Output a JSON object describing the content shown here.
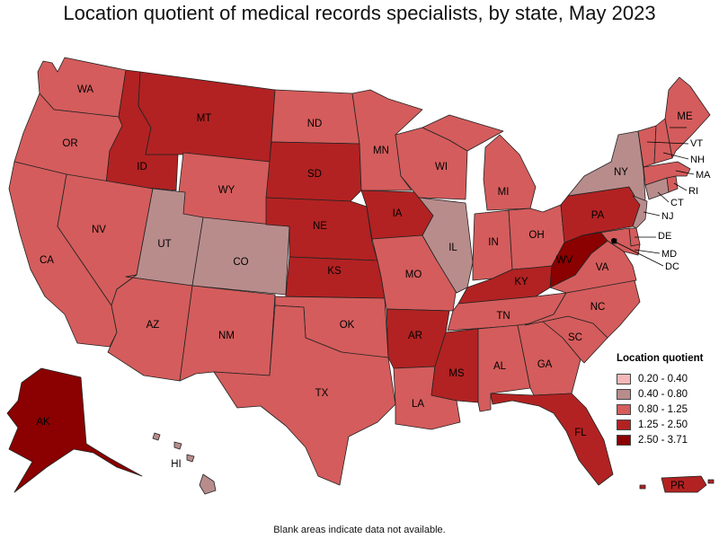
{
  "title": "Location quotient of medical records specialists, by state, May 2023",
  "footnote": "Blank areas indicate data not available.",
  "legend": {
    "title": "Location quotient",
    "bins": [
      {
        "label": "0.20 - 0.40",
        "color": "#f4b8b8"
      },
      {
        "label": "0.40 - 0.80",
        "color": "#b98c8c"
      },
      {
        "label": "0.80 - 1.25",
        "color": "#d45c5c"
      },
      {
        "label": "1.25 - 2.50",
        "color": "#b22222"
      },
      {
        "label": "2.50 - 3.71",
        "color": "#8b0000"
      }
    ]
  },
  "states": [
    {
      "abbr": "WA",
      "bin": 2
    },
    {
      "abbr": "OR",
      "bin": 2
    },
    {
      "abbr": "CA",
      "bin": 2
    },
    {
      "abbr": "ID",
      "bin": 3
    },
    {
      "abbr": "NV",
      "bin": 2
    },
    {
      "abbr": "MT",
      "bin": 3
    },
    {
      "abbr": "WY",
      "bin": 2
    },
    {
      "abbr": "UT",
      "bin": 1
    },
    {
      "abbr": "CO",
      "bin": 1
    },
    {
      "abbr": "AZ",
      "bin": 2
    },
    {
      "abbr": "NM",
      "bin": 2
    },
    {
      "abbr": "ND",
      "bin": 2
    },
    {
      "abbr": "SD",
      "bin": 3
    },
    {
      "abbr": "NE",
      "bin": 3
    },
    {
      "abbr": "KS",
      "bin": 3
    },
    {
      "abbr": "OK",
      "bin": 2
    },
    {
      "abbr": "TX",
      "bin": 2
    },
    {
      "abbr": "MN",
      "bin": 2
    },
    {
      "abbr": "IA",
      "bin": 3
    },
    {
      "abbr": "MO",
      "bin": 2
    },
    {
      "abbr": "AR",
      "bin": 3
    },
    {
      "abbr": "LA",
      "bin": 2
    },
    {
      "abbr": "WI",
      "bin": 2
    },
    {
      "abbr": "IL",
      "bin": 1
    },
    {
      "abbr": "MI",
      "bin": 2
    },
    {
      "abbr": "IN",
      "bin": 2
    },
    {
      "abbr": "OH",
      "bin": 2
    },
    {
      "abbr": "KY",
      "bin": 3
    },
    {
      "abbr": "TN",
      "bin": 2
    },
    {
      "abbr": "MS",
      "bin": 3
    },
    {
      "abbr": "AL",
      "bin": 2
    },
    {
      "abbr": "GA",
      "bin": 2
    },
    {
      "abbr": "FL",
      "bin": 3
    },
    {
      "abbr": "SC",
      "bin": 2
    },
    {
      "abbr": "NC",
      "bin": 2
    },
    {
      "abbr": "VA",
      "bin": 2
    },
    {
      "abbr": "WV",
      "bin": 4
    },
    {
      "abbr": "PA",
      "bin": 3
    },
    {
      "abbr": "NY",
      "bin": 1
    },
    {
      "abbr": "NJ",
      "bin": 1
    },
    {
      "abbr": "DE",
      "bin": 2
    },
    {
      "abbr": "MD",
      "bin": 2
    },
    {
      "abbr": "DC",
      "bin": 4
    },
    {
      "abbr": "CT",
      "bin": 1
    },
    {
      "abbr": "RI",
      "bin": 2
    },
    {
      "abbr": "MA",
      "bin": 2
    },
    {
      "abbr": "VT",
      "bin": 2
    },
    {
      "abbr": "NH",
      "bin": 2
    },
    {
      "abbr": "ME",
      "bin": 2
    },
    {
      "abbr": "AK",
      "bin": 4
    },
    {
      "abbr": "HI",
      "bin": 1
    },
    {
      "abbr": "PR",
      "bin": 3
    }
  ]
}
